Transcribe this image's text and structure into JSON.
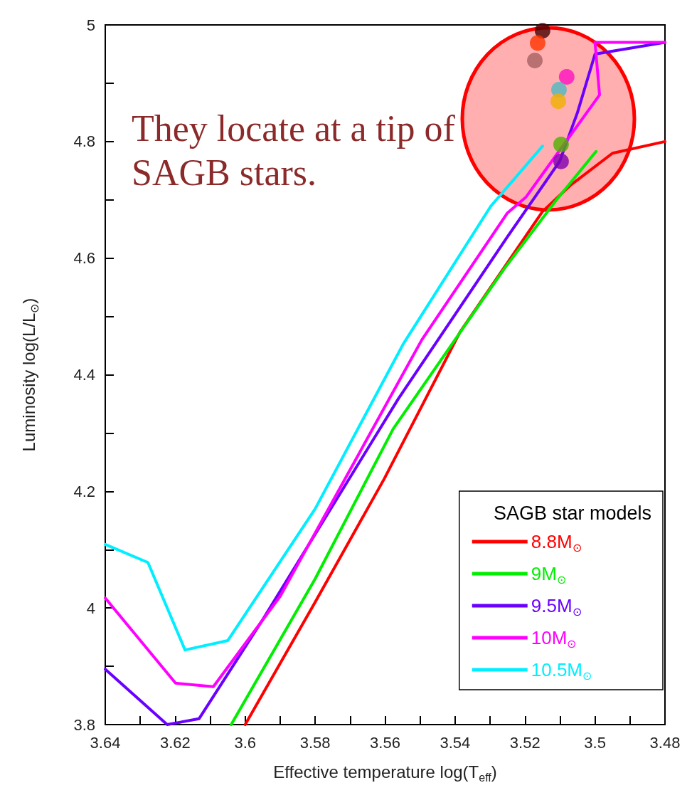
{
  "chart_data": {
    "type": "line",
    "xlabel": "Effective temperature log(T$_{eff}$)",
    "ylabel": "Luminosity log(L/L$_{⊙}$)",
    "legend_title": "SAGB star models",
    "annotations": [
      "They locate at a tip of SAGB stars."
    ],
    "xlim": [
      3.64,
      3.48
    ],
    "xticks": [
      3.64,
      {
        "value": 3.63,
        "label": null
      },
      3.62,
      {
        "value": 3.61,
        "label": null
      },
      3.6,
      {
        "value": 3.59,
        "label": null
      },
      3.58,
      {
        "value": 3.57,
        "label": null
      },
      3.56,
      {
        "value": 3.55,
        "label": null
      },
      3.54,
      {
        "value": 3.53,
        "label": null
      },
      3.52,
      {
        "value": 3.51,
        "label": null
      },
      3.5,
      {
        "value": 3.49,
        "label": null
      },
      3.48
    ],
    "ylim": [
      3.8,
      5
    ],
    "yticks": [
      3.8,
      {
        "value": 3.9,
        "label": null
      },
      4,
      {
        "value": 4.1,
        "label": null
      },
      4.2,
      {
        "value": 4.3,
        "label": null
      },
      4.4,
      {
        "value": 4.5,
        "label": null
      },
      4.6,
      {
        "value": 4.7,
        "label": null
      },
      4.8,
      {
        "value": 4.9,
        "label": null
      },
      5
    ],
    "grid": false,
    "legend": "bottom right",
    "marker": "none",
    "line_style": "solid",
    "series": [
      {
        "name": "8.8M$_{⊙}$",
        "color": "#ff0000",
        "x": [
          3.6,
          3.58,
          3.5603,
          3.5386,
          3.515,
          3.507,
          3.495,
          3.48
        ],
        "values": [
          3.8,
          4.01,
          4.221,
          4.473,
          4.68,
          4.725,
          4.78,
          4.8
        ]
      },
      {
        "name": "9M$_{⊙}$",
        "color": "#00ee00",
        "x": [
          3.604,
          3.58,
          3.5577,
          3.5258,
          3.511,
          3.4997
        ],
        "values": [
          3.8,
          4.05,
          4.307,
          4.583,
          4.7,
          4.783
        ]
      },
      {
        "name": "9.5M$_{⊙}$",
        "color": "#6a00ff",
        "x": [
          3.64,
          3.6223,
          3.6132,
          3.595,
          3.5562,
          3.5251,
          3.5101,
          3.505,
          3.5,
          3.48
        ],
        "values": [
          3.895,
          3.8,
          3.81,
          3.98,
          4.359,
          4.636,
          4.766,
          4.85,
          4.95,
          4.97
        ]
      },
      {
        "name": "10M$_{⊙}$",
        "color": "#ff00ff",
        "x": [
          3.64,
          3.6199,
          3.6091,
          3.59,
          3.5495,
          3.5251,
          3.5197,
          3.4987,
          3.5,
          3.48
        ],
        "values": [
          4.017,
          3.871,
          3.865,
          4.02,
          4.46,
          4.677,
          4.705,
          4.88,
          4.97,
          4.97
        ]
      },
      {
        "name": "10.5M$_{⊙}$",
        "color": "#00eeff",
        "x": [
          3.64,
          3.6278,
          3.6172,
          3.605,
          3.58,
          3.5548,
          3.5298,
          3.515
        ],
        "values": [
          4.109,
          4.078,
          3.928,
          3.944,
          4.17,
          4.453,
          4.689,
          4.792
        ]
      },
      {
        "type": "scatter",
        "marker": "circle",
        "x": [
          3.515,
          3.5164,
          3.5172,
          3.5081,
          3.5103,
          3.5105,
          3.5097,
          3.5097
        ],
        "values": [
          4.99,
          4.969,
          4.939,
          4.911,
          4.889,
          4.869,
          4.795,
          4.766
        ],
        "colors": [
          "#4a0000",
          "#ff3300",
          "#a86060",
          "#ff10c0",
          "#50b8c0",
          "#f0b000",
          "#50b000",
          "#8000b0"
        ]
      }
    ]
  }
}
